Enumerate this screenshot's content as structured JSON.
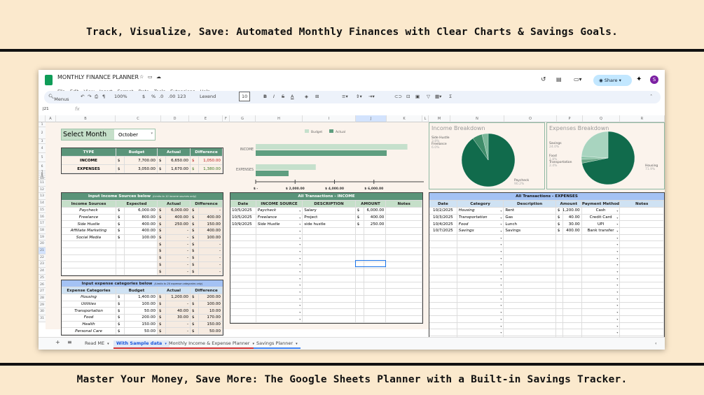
{
  "banner_top": "Track, Visualize, Save: Automated Monthly Finances with Clear Charts & Savings Goals.",
  "banner_bottom": "Master Your Money, Save More: The Google Sheets Planner with a Built-in Savings Tracker.",
  "app": {
    "title": "MONTHLY FINANCE PLANNER",
    "menu": [
      "File",
      "Edit",
      "View",
      "Insert",
      "Format",
      "Data",
      "Tools",
      "Extensions",
      "Help"
    ],
    "share": "Share",
    "avatar": "S",
    "accent": "#0f9d58"
  },
  "toolbar": {
    "search": "Menus",
    "zoom": "100%",
    "currency": "$",
    "percent": "%",
    "dec_less": ".0",
    "dec_more": ".00",
    "format123": "123",
    "font": "Lexend",
    "font_size": "10",
    "name_box": "J21",
    "fx": "fx"
  },
  "columns": [
    "A",
    "B",
    "C",
    "D",
    "E",
    "F",
    "G",
    "H",
    "I",
    "J",
    "K",
    "L",
    "M",
    "N",
    "O",
    "P",
    "Q",
    "R"
  ],
  "rows": [
    "1",
    "2",
    "3",
    "4",
    "5",
    "6",
    "7",
    "8",
    "9",
    "10",
    "11",
    "12",
    "13",
    "14",
    "15",
    "16",
    "17",
    "18",
    "19",
    "20",
    "21",
    "22",
    "23",
    "24",
    "25",
    "26",
    "27",
    "28",
    "29",
    "30",
    "31"
  ],
  "select_month": {
    "label": "Select Month",
    "value": "October"
  },
  "summary": {
    "headers": [
      "TYPE",
      "Budget",
      "Actual",
      "Difference"
    ],
    "rows": [
      [
        "INCOME",
        "$",
        "7,700.00",
        "$",
        "6,650.00",
        "$",
        "1,050.00"
      ],
      [
        "EXPENSES",
        "$",
        "3,050.00",
        "$",
        "1,670.00",
        "$",
        "1,380.00"
      ]
    ]
  },
  "income_sources": {
    "title": "Input Income Sources below",
    "note": "(Limits to 10 income sources only)",
    "headers": [
      "Income Sources",
      "Expected",
      "Actual",
      "Difference"
    ],
    "rows": [
      [
        "Paycheck",
        "$",
        "6,000.00",
        "$",
        "6,000.00",
        "$",
        "-"
      ],
      [
        "Freelance",
        "$",
        "800.00",
        "$",
        "400.00",
        "$",
        "400.00"
      ],
      [
        "Side Hustle",
        "$",
        "400.00",
        "$",
        "250.00",
        "$",
        "150.00"
      ],
      [
        "Affiliate Marketing",
        "$",
        "400.00",
        "$",
        "-",
        "$",
        "400.00"
      ],
      [
        "Social Media",
        "$",
        "100.00",
        "$",
        "-",
        "$",
        "100.00"
      ],
      [
        "",
        "",
        "",
        "$",
        "-",
        "$",
        "-"
      ],
      [
        "",
        "",
        "",
        "$",
        "-",
        "$",
        "-"
      ],
      [
        "",
        "",
        "",
        "$",
        "-",
        "$",
        "-"
      ],
      [
        "",
        "",
        "",
        "$",
        "-",
        "$",
        "-"
      ],
      [
        "",
        "",
        "",
        "$",
        "-",
        "$",
        "-"
      ]
    ]
  },
  "expense_categories": {
    "title": "Input expense categories below",
    "note": "(Limits to 20 expense categories only)",
    "headers": [
      "Expense Categories",
      "Budget",
      "Actual",
      "Difference"
    ],
    "rows": [
      [
        "Housing",
        "$",
        "1,400.00",
        "$",
        "1,200.00",
        "$",
        "200.00"
      ],
      [
        "Utilities",
        "$",
        "100.00",
        "$",
        "-",
        "$",
        "100.00"
      ],
      [
        "Transportation",
        "$",
        "50.00",
        "$",
        "40.00",
        "$",
        "10.00"
      ],
      [
        "Food",
        "$",
        "200.00",
        "$",
        "30.00",
        "$",
        "170.00"
      ],
      [
        "Health",
        "$",
        "150.00",
        "$",
        "-",
        "$",
        "150.00"
      ],
      [
        "Personal Care",
        "$",
        "50.00",
        "$",
        "-",
        "$",
        "50.00"
      ]
    ]
  },
  "chart_data": [
    {
      "type": "bar",
      "orientation": "horizontal",
      "categories": [
        "INCOME",
        "EXPENSES"
      ],
      "series": [
        {
          "name": "Budget",
          "values": [
            7700,
            3050
          ],
          "color": "#c5e0cc"
        },
        {
          "name": "Actual",
          "values": [
            6650,
            1670
          ],
          "color": "#5f9e80"
        }
      ],
      "xlim": [
        0,
        8000
      ],
      "xticks": [
        "$ -",
        "$ 2,000.00",
        "$ 4,000.00",
        "$ 6,000.00"
      ],
      "legend": "top"
    },
    {
      "type": "pie",
      "title": "Income Breakdown",
      "slices": [
        {
          "label": "Paycheck",
          "pct": "90.2%",
          "value": 90.2,
          "color": "#116b4c"
        },
        {
          "label": "Freelance",
          "pct": "6.0%",
          "value": 6.0,
          "color": "#3f8d6a"
        },
        {
          "label": "Side Hustle",
          "pct": "3.8%",
          "value": 3.8,
          "color": "#7bb89a"
        }
      ]
    },
    {
      "type": "pie",
      "title": "Expenses Breakdown",
      "slices": [
        {
          "label": "Housing",
          "pct": "71.9%",
          "value": 71.9,
          "color": "#116b4c"
        },
        {
          "label": "Transportation",
          "pct": "2.4%",
          "value": 2.4,
          "color": "#6aa888"
        },
        {
          "label": "Food",
          "pct": "1.8%",
          "value": 1.8,
          "color": "#8cc4a8"
        },
        {
          "label": "Savings",
          "pct": "24.0%",
          "value": 24.0,
          "color": "#a8d4bf"
        }
      ]
    }
  ],
  "income_tx": {
    "title": "All Transactions - INCOME",
    "headers": [
      "Date",
      "INCOME SOURCE",
      "DESCRIPTION",
      "AMOUNT",
      "Notes"
    ],
    "rows": [
      [
        "10/5/2025",
        "Paycheck",
        "Salary",
        "$",
        "6,000.00"
      ],
      [
        "10/5/2025",
        "Freelance",
        "Project",
        "$",
        "400.00"
      ],
      [
        "10/9/2025",
        "Side Hustle",
        "side hustle",
        "$",
        "250.00"
      ]
    ]
  },
  "expense_tx": {
    "title": "All Transactions - EXPENSES",
    "headers": [
      "Date",
      "Category",
      "Description",
      "Amount",
      "Payment Method",
      "Notes"
    ],
    "rows": [
      [
        "10/2/2025",
        "Housing",
        "Rent",
        "$",
        "1,200.00",
        "Cash"
      ],
      [
        "10/3/2025",
        "Transportation",
        "Gas",
        "$",
        "40.00",
        "Credit Card"
      ],
      [
        "10/4/2025",
        "Food",
        "Lunch",
        "$",
        "30.00",
        "UPI"
      ],
      [
        "10/7/2025",
        "Savings",
        "Savings",
        "$",
        "400.00",
        "Bank transfer"
      ]
    ]
  },
  "sheet_tabs": [
    "Read ME",
    "With Sample data",
    "Monthly Income & Expense Planner",
    "Savings Planner"
  ],
  "colors": {
    "green_header": "#5a9479",
    "light_green": "#c5dfc9",
    "blue_header": "#a4c2f4",
    "light_blue": "#cfe2f3",
    "red": "#b71c1c",
    "positive": "#38761d"
  }
}
